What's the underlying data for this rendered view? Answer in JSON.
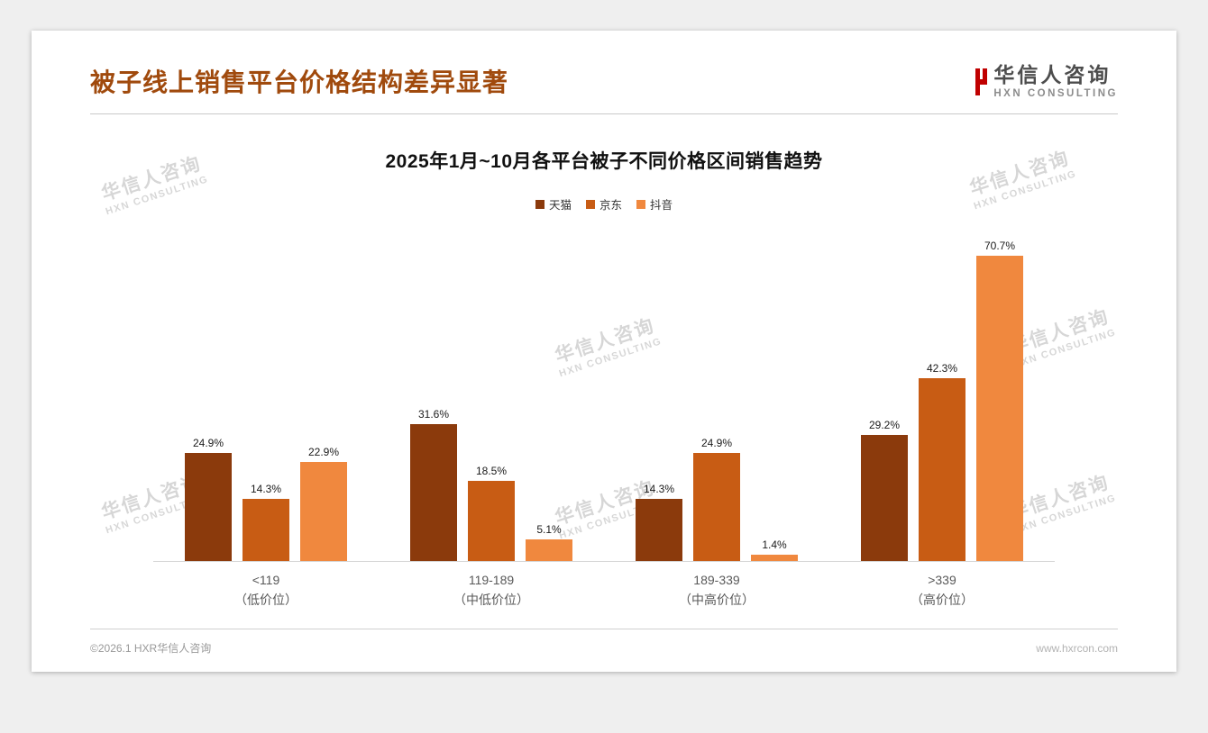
{
  "page": {
    "title": "被子线上销售平台价格结构差异显著",
    "title_color": "#A04A0D"
  },
  "logo": {
    "name": "华信人咨询",
    "sub": "HXN CONSULTING",
    "icon_color": "#C00000"
  },
  "watermark": {
    "line1": "华信人咨询",
    "line2": "HXN CONSULTING"
  },
  "footer": {
    "left": "©2026.1 HXR华信人咨询",
    "right": "www.hxrcon.com"
  },
  "chart_data": {
    "type": "bar",
    "title": "2025年1月~10月各平台被子不同价格区间销售趋势",
    "categories": [
      "<119",
      "119-189",
      "189-339",
      ">339"
    ],
    "category_subs": [
      "（低价位）",
      "（中低价位）",
      "（中高价位）",
      "（高价位）"
    ],
    "series": [
      {
        "name": "天猫",
        "color": "#8B3A0C",
        "values": [
          24.9,
          31.6,
          14.3,
          29.2
        ]
      },
      {
        "name": "京东",
        "color": "#C85C14",
        "values": [
          14.3,
          18.5,
          24.9,
          42.3
        ]
      },
      {
        "name": "抖音",
        "color": "#F0883E",
        "values": [
          22.9,
          5.1,
          1.4,
          70.7
        ]
      }
    ],
    "value_format": "percent",
    "ylim": [
      0,
      75
    ],
    "legend_position": "top",
    "grid": false,
    "xlabel": "",
    "ylabel": ""
  }
}
